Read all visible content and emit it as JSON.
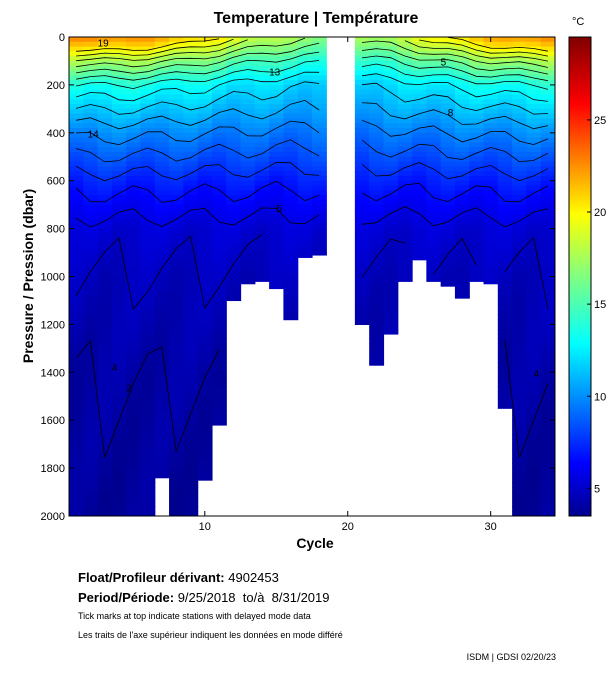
{
  "chart_data": {
    "type": "heatmap",
    "title": "Temperature | Température",
    "xlabel": "Cycle",
    "ylabel": "Pressure / Pression (dbar)",
    "xlim": [
      0.5,
      34.5
    ],
    "ylim": [
      2000,
      0
    ],
    "x_ticks": [
      10,
      20,
      30
    ],
    "y_ticks": [
      0,
      200,
      400,
      600,
      800,
      1000,
      1200,
      1400,
      1600,
      1800,
      2000
    ],
    "colorbar": {
      "unit": "°C",
      "range": [
        3.5,
        29.5
      ],
      "ticks": [
        5,
        10,
        15,
        20,
        25
      ]
    },
    "profile_max_pressure": [
      {
        "cycle": 1,
        "max_dbar": 2000
      },
      {
        "cycle": 2,
        "max_dbar": 2000
      },
      {
        "cycle": 3,
        "max_dbar": 2000
      },
      {
        "cycle": 4,
        "max_dbar": 2000
      },
      {
        "cycle": 5,
        "max_dbar": 2000
      },
      {
        "cycle": 6,
        "max_dbar": 2000
      },
      {
        "cycle": 7,
        "max_dbar": 1840
      },
      {
        "cycle": 8,
        "max_dbar": 2000
      },
      {
        "cycle": 9,
        "max_dbar": 2000
      },
      {
        "cycle": 10,
        "max_dbar": 1850
      },
      {
        "cycle": 11,
        "max_dbar": 1620
      },
      {
        "cycle": 12,
        "max_dbar": 1100
      },
      {
        "cycle": 13,
        "max_dbar": 1030
      },
      {
        "cycle": 14,
        "max_dbar": 1020
      },
      {
        "cycle": 15,
        "max_dbar": 1050
      },
      {
        "cycle": 16,
        "max_dbar": 1180
      },
      {
        "cycle": 17,
        "max_dbar": 920
      },
      {
        "cycle": 18,
        "max_dbar": 910
      },
      {
        "cycle": 19,
        "max_dbar": null
      },
      {
        "cycle": 20,
        "max_dbar": null
      },
      {
        "cycle": 21,
        "max_dbar": 1200
      },
      {
        "cycle": 22,
        "max_dbar": 1370
      },
      {
        "cycle": 23,
        "max_dbar": 1240
      },
      {
        "cycle": 24,
        "max_dbar": 1020
      },
      {
        "cycle": 25,
        "max_dbar": 930
      },
      {
        "cycle": 26,
        "max_dbar": 1020
      },
      {
        "cycle": 27,
        "max_dbar": 1040
      },
      {
        "cycle": 28,
        "max_dbar": 1090
      },
      {
        "cycle": 29,
        "max_dbar": 1020
      },
      {
        "cycle": 30,
        "max_dbar": 1030
      },
      {
        "cycle": 31,
        "max_dbar": 1550
      },
      {
        "cycle": 32,
        "max_dbar": 2000
      },
      {
        "cycle": 33,
        "max_dbar": 2000
      },
      {
        "cycle": 34,
        "max_dbar": 2000
      }
    ],
    "temperature_profile": [
      {
        "dbar": 0,
        "temp": 20
      },
      {
        "dbar": 100,
        "temp": 16
      },
      {
        "dbar": 200,
        "temp": 13
      },
      {
        "dbar": 400,
        "temp": 10
      },
      {
        "dbar": 600,
        "temp": 7.5
      },
      {
        "dbar": 800,
        "temp": 5.5
      },
      {
        "dbar": 1000,
        "temp": 4.8
      },
      {
        "dbar": 1400,
        "temp": 4.2
      },
      {
        "dbar": 2000,
        "temp": 3.8
      }
    ],
    "contour_levels": [
      4,
      5,
      6,
      7,
      8,
      9,
      10,
      11,
      12,
      13,
      14,
      15,
      16,
      17,
      18,
      19,
      20
    ],
    "contour_labels": [
      {
        "text": "19",
        "cycle": 2.5,
        "dbar": 40
      },
      {
        "text": "14",
        "cycle": 1.8,
        "dbar": 420
      },
      {
        "text": "4",
        "cycle": 3.5,
        "dbar": 1395
      },
      {
        "text": "2",
        "cycle": 4.5,
        "dbar": 1480
      },
      {
        "text": "5",
        "cycle": 15,
        "dbar": 730
      },
      {
        "text": "13",
        "cycle": 14.5,
        "dbar": 160
      },
      {
        "text": "8",
        "cycle": 27,
        "dbar": 330
      },
      {
        "text": "5",
        "cycle": 26.5,
        "dbar": 120
      },
      {
        "text": "4",
        "cycle": 33,
        "dbar": 1420
      }
    ]
  },
  "info": {
    "float_label": "Float/Profileur dérivant:",
    "float_value": "4902453",
    "period_label": "Period/Période:",
    "period_value": "9/25/2018  to/à  8/31/2019",
    "note_en": "Tick marks at top indicate stations with delayed mode data",
    "note_fr": "Les traits de l'axe supérieur indiquent les données en mode différé"
  },
  "credit": "ISDM | GDSI  02/20/23",
  "colors": {
    "cmap": [
      "#00008f",
      "#0000ff",
      "#0080ff",
      "#00ffff",
      "#80ff80",
      "#ffff00",
      "#ff8000",
      "#ff0000",
      "#800000"
    ]
  }
}
